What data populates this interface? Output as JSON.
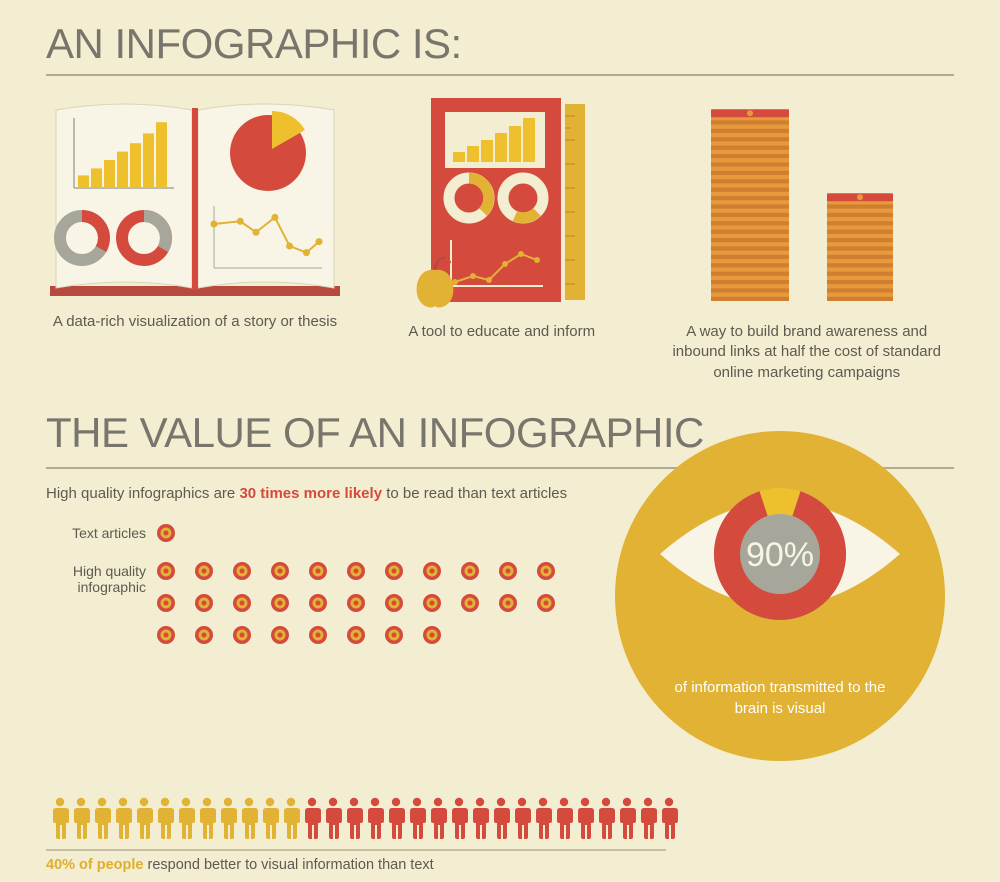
{
  "colors": {
    "bg": "#f3eed1",
    "heading": "#78756c",
    "text": "#5e5951",
    "rule": "#b2ab8f",
    "red": "#d44b3e",
    "red_dark": "#b8493e",
    "yellow": "#e1b233",
    "yellow_bright": "#efc02d",
    "orange": "#e79a3c",
    "orange_dark": "#cf7f2f",
    "grey": "#a6a79a",
    "cream": "#f8f5e7",
    "white": "#ffffff"
  },
  "section1": {
    "title": "AN INFOGRAPHIC IS:",
    "title_fontsize": 42,
    "items": [
      {
        "caption": "A data-rich visualization of a story or thesis"
      },
      {
        "caption": "A tool to educate and inform"
      },
      {
        "caption": "A way to build brand awareness and inbound links at half the cost of standard online marketing campaigns"
      }
    ],
    "book_bars": [
      18,
      28,
      40,
      52,
      64,
      78,
      94
    ],
    "poster_bars": [
      20,
      32,
      44,
      58,
      72,
      88
    ],
    "pie_slice_deg": 70,
    "donut_slice_deg": 100,
    "line_points": [
      [
        0,
        80
      ],
      [
        25,
        85
      ],
      [
        40,
        65
      ],
      [
        58,
        92
      ],
      [
        72,
        40
      ],
      [
        88,
        28
      ],
      [
        100,
        48
      ]
    ]
  },
  "section2": {
    "title": "THE VALUE OF AN INFOGRAPHIC",
    "title_fontsize": 42,
    "lead_pre": "High quality infographics are ",
    "lead_em": "30 times more likely",
    "lead_post": " to be read than text articles",
    "rows": [
      {
        "label": "Text articles",
        "count": 1
      },
      {
        "label": "High quality infographic",
        "count": 30
      }
    ],
    "eye": {
      "percent_label": "90%",
      "sub": "of information transmitted to the brain is visual",
      "donut_red_deg": 324,
      "donut_yellow_deg": 36
    }
  },
  "people": {
    "total": 30,
    "yellow_count": 12,
    "em": "40% of people",
    "caption_rest": " respond better to visual information than text"
  }
}
